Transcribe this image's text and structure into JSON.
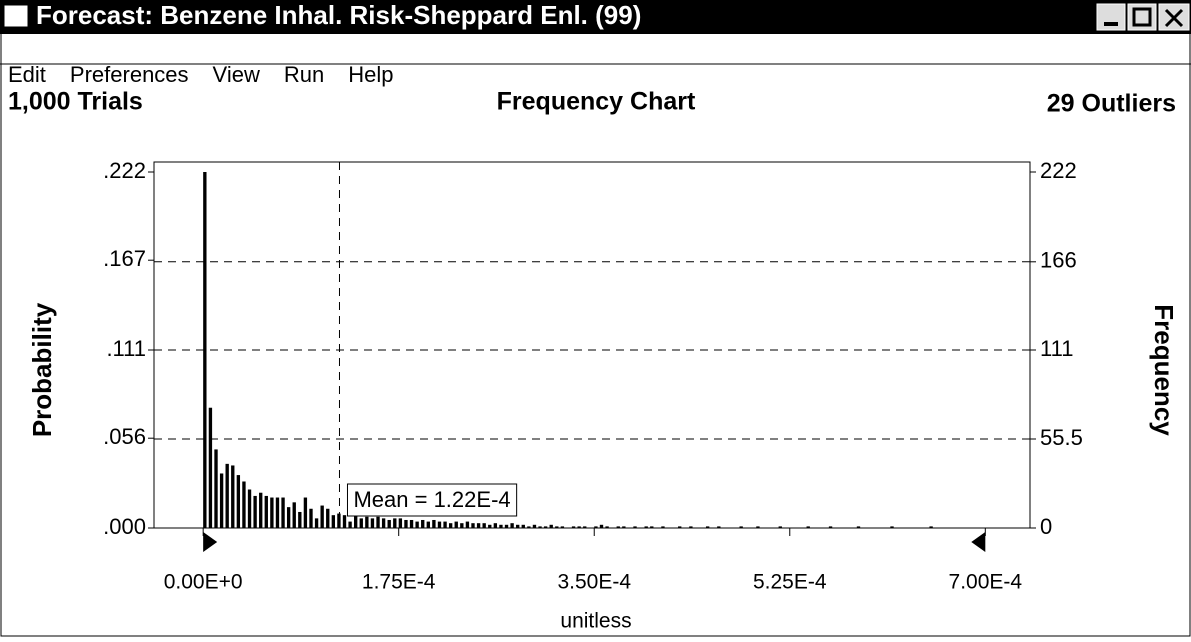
{
  "window": {
    "title": "Forecast: Benzene Inhal. Risk-Sheppard Enl. (99)",
    "menu": [
      "Edit",
      "Preferences",
      "View",
      "Run",
      "Help"
    ]
  },
  "chart_data": {
    "type": "histogram",
    "title": "Frequency Chart",
    "trials": "1,000 Trials",
    "outliers": "29 Outliers",
    "xlabel": "unitless",
    "ylabel": "Probability",
    "y2label": "Frequency",
    "color": "#000000",
    "grid": true,
    "xlim": [
      -4.4e-05,
      0.00074
    ],
    "xticks": [
      {
        "value": 0,
        "label": "0.00E+0"
      },
      {
        "value": 0.000175,
        "label": "1.75E-4"
      },
      {
        "value": 0.00035,
        "label": "3.50E-4"
      },
      {
        "value": 0.000525,
        "label": "5.25E-4"
      },
      {
        "value": 0.0007,
        "label": "7.00E-4"
      }
    ],
    "ylim": [
      0,
      0.222
    ],
    "yticks": [
      {
        "value": 0,
        "label": ".000"
      },
      {
        "value": 0.056,
        "label": ".056"
      },
      {
        "value": 0.111,
        "label": ".111"
      },
      {
        "value": 0.167,
        "label": ".167"
      },
      {
        "value": 0.222,
        "label": ".222"
      }
    ],
    "y2lim": [
      0,
      222
    ],
    "y2ticks": [
      0,
      55.5,
      111,
      166,
      222
    ],
    "mean": {
      "value": 0.000122,
      "label": "Mean = 1.22E-4"
    },
    "bins": [
      0,
      5e-06,
      1e-05,
      1.5e-05,
      2e-05,
      2.5e-05,
      3e-05,
      3.5e-05,
      4e-05,
      4.5e-05,
      5e-05,
      5.5e-05,
      6e-05,
      6.5e-05,
      7e-05,
      7.5e-05,
      8e-05,
      8.5e-05,
      9e-05,
      9.5e-05,
      0.0001,
      0.000105,
      0.00011,
      0.000115,
      0.00012,
      0.000125,
      0.00013,
      0.000135,
      0.00014,
      0.000145,
      0.00015,
      0.000155,
      0.00016,
      0.000165,
      0.00017,
      0.000175,
      0.00018,
      0.000185,
      0.00019,
      0.000195,
      0.0002,
      0.000205,
      0.00021,
      0.000215,
      0.00022,
      0.000225,
      0.00023,
      0.000235,
      0.00024,
      0.000245,
      0.00025,
      0.000255,
      0.00026,
      0.000265,
      0.00027,
      0.000275,
      0.00028,
      0.000285,
      0.00029,
      0.000295,
      0.0003,
      0.000305,
      0.00031,
      0.000315,
      0.00032,
      0.000325,
      0.00033,
      0.000335,
      0.00034,
      0.000345,
      0.00035,
      0.000355,
      0.00036,
      0.000365,
      0.00037,
      0.000375,
      0.00038,
      0.000385,
      0.00039,
      0.000395,
      0.0004,
      0.000405,
      0.00041,
      0.000415,
      0.00042,
      0.000425,
      0.00043,
      0.000435,
      0.00044,
      0.000445,
      0.00045,
      0.000455,
      0.00046,
      0.000465,
      0.00047,
      0.000475,
      0.00048,
      0.000485,
      0.00049,
      0.000495,
      0.0005,
      0.000505,
      0.00051,
      0.000515,
      0.00052,
      0.000525,
      0.00053,
      0.000535,
      0.00054,
      0.000545,
      0.00055,
      0.000555,
      0.00056,
      0.000565,
      0.00057,
      0.000575,
      0.00058,
      0.000585,
      0.00059,
      0.000595,
      0.0006,
      0.000605,
      0.00061,
      0.000615,
      0.00062,
      0.000625,
      0.00063,
      0.000635,
      0.00064,
      0.000645,
      0.00065,
      0.000655,
      0.00066,
      0.000665,
      0.00067,
      0.000675,
      0.00068,
      0.000685,
      0.00069,
      0.000695,
      0.0007
    ],
    "series": [
      {
        "name": "Frequency",
        "axis": "y2",
        "color": "#000000",
        "values": [
          222,
          75,
          49,
          34,
          40,
          39,
          33,
          29,
          24,
          20,
          22,
          20,
          19,
          19,
          19,
          13,
          16,
          10,
          19,
          12,
          6,
          14,
          12,
          8,
          9,
          8,
          4,
          8,
          6,
          7,
          6,
          7,
          6,
          5,
          6,
          6,
          5,
          5,
          4,
          5,
          4,
          5,
          4,
          4,
          3,
          4,
          3,
          4,
          3,
          3,
          3,
          2,
          3,
          2,
          2,
          3,
          2,
          2,
          1,
          2,
          1,
          1,
          2,
          1,
          1,
          0,
          1,
          1,
          1,
          0,
          1,
          2,
          1,
          0,
          1,
          1,
          0,
          1,
          0,
          1,
          1,
          0,
          1,
          0,
          0,
          1,
          0,
          1,
          0,
          0,
          1,
          0,
          1,
          0,
          0,
          0,
          1,
          0,
          0,
          1,
          0,
          0,
          0,
          1,
          0,
          0,
          0,
          0,
          1,
          0,
          0,
          0,
          1,
          0,
          0,
          0,
          0,
          1,
          0,
          0,
          0,
          0,
          0,
          1,
          0,
          0,
          0,
          0,
          0,
          0,
          1,
          0,
          0,
          0,
          0,
          0,
          0,
          0,
          0,
          0
        ]
      }
    ]
  }
}
